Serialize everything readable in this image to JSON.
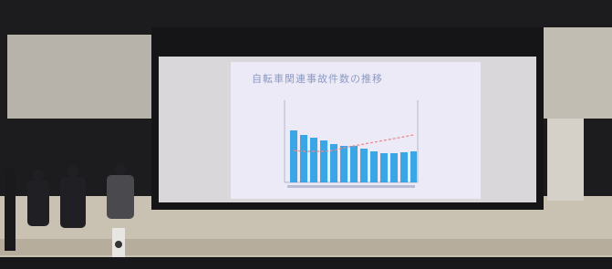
{
  "slide": {
    "title": "自転車関連事故件数の推移"
  }
}
